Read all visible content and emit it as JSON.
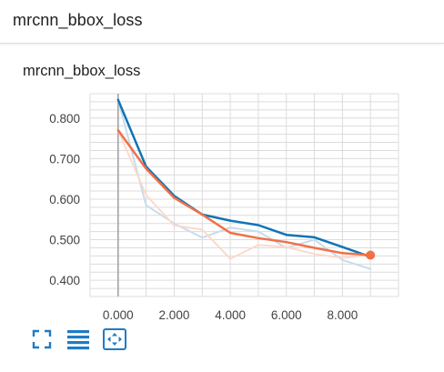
{
  "header": {
    "title": "mrcnn_bbox_loss"
  },
  "card": {
    "title": "mrcnn_bbox_loss"
  },
  "colors": {
    "series_main": "#0f74b5",
    "series_main_raw": "#c7dced",
    "series_smoothed": "#f07048",
    "series_smoothed_raw": "#fcd9cd",
    "toolbar_icon": "#1f7bc4",
    "grid": "#dcdcdc",
    "axis": "#9e9e9e"
  },
  "toolbar": {
    "icons": [
      "expand-icon",
      "data-table-icon",
      "fit-domain-icon"
    ]
  },
  "chart_data": {
    "type": "line",
    "title": "mrcnn_bbox_loss",
    "xlabel": "",
    "ylabel": "",
    "xlim": [
      -1,
      10
    ],
    "ylim": [
      0.36,
      0.86
    ],
    "grid": true,
    "x_ticks": [
      "0.000",
      "2.000",
      "4.000",
      "6.000",
      "8.000"
    ],
    "x_tick_values": [
      0,
      2,
      4,
      6,
      8
    ],
    "y_ticks": [
      "0.400",
      "0.500",
      "0.600",
      "0.700",
      "0.800"
    ],
    "y_tick_values": [
      0.4,
      0.5,
      0.6,
      0.7,
      0.8
    ],
    "series": [
      {
        "color": "#c7dced",
        "width": 2,
        "x": [
          0,
          1,
          2,
          3,
          4,
          5,
          6,
          7,
          8,
          9
        ],
        "values": [
          0.845,
          0.585,
          0.54,
          0.505,
          0.53,
          0.52,
          0.48,
          0.5,
          0.45,
          0.428
        ]
      },
      {
        "color": "#fcd9cd",
        "width": 2,
        "x": [
          0,
          1,
          2,
          3,
          4,
          5,
          6,
          7,
          8,
          9
        ],
        "values": [
          0.77,
          0.61,
          0.535,
          0.525,
          0.453,
          0.487,
          0.482,
          0.465,
          0.455,
          0.462
        ]
      },
      {
        "color": "#0f74b5",
        "width": 2.5,
        "x": [
          0,
          1,
          2,
          3,
          4,
          5,
          6,
          7,
          8,
          9
        ],
        "values": [
          0.845,
          0.68,
          0.608,
          0.562,
          0.547,
          0.536,
          0.512,
          0.506,
          0.482,
          0.458
        ]
      },
      {
        "color": "#f07048",
        "width": 2.5,
        "x": [
          0,
          1,
          2,
          3,
          4,
          5,
          6,
          7,
          8,
          9
        ],
        "values": [
          0.77,
          0.675,
          0.603,
          0.562,
          0.517,
          0.504,
          0.494,
          0.48,
          0.467,
          0.462
        ]
      }
    ],
    "highlight_point": {
      "x": 9,
      "y": 0.462,
      "color": "#f07048"
    }
  }
}
